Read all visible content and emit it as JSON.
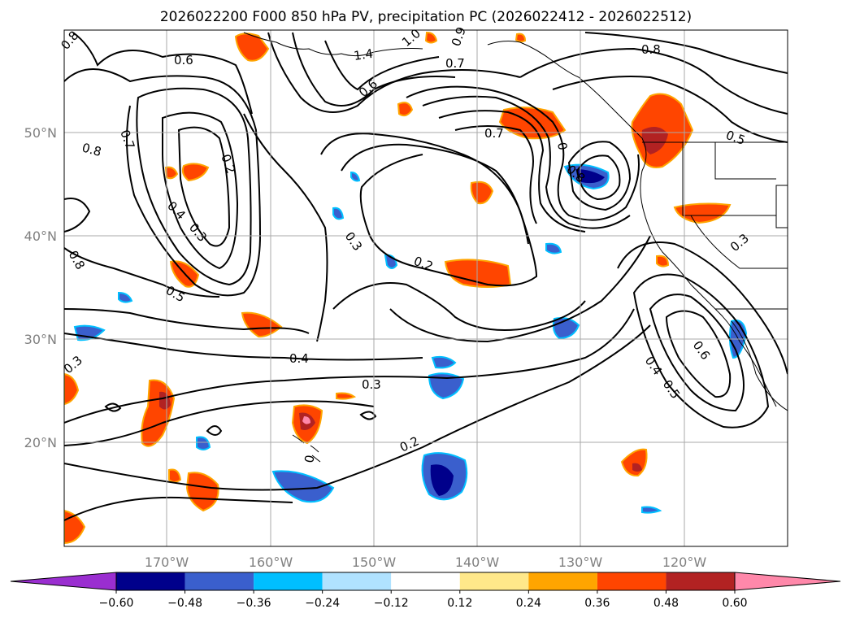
{
  "title": "2026022200 F000 850 hPa PV, precipitation PC (2026022412 - 2026022512)",
  "lat_labels": [
    "50°N",
    "40°N",
    "30°N",
    "20°N"
  ],
  "lon_labels": [
    "170°W",
    "160°W",
    "150°W",
    "140°W",
    "130°W",
    "120°W"
  ],
  "colorbar": {
    "colors": [
      "#9a2ed0",
      "#00008b",
      "#3a5fcd",
      "#00bfff",
      "#b0e2ff",
      "#ffffff",
      "#ffe88a",
      "#ffa500",
      "#ff4500",
      "#b22222",
      "#ff88aa"
    ],
    "tick_labels": [
      "−0.60",
      "−0.48",
      "−0.36",
      "−0.24",
      "−0.12",
      "0.12",
      "0.24",
      "0.36",
      "0.48",
      "0.60"
    ]
  },
  "contour_labels": [
    {
      "id": "c-0.8-a",
      "text": "0.8"
    },
    {
      "id": "c-0.6-a",
      "text": "0.6"
    },
    {
      "id": "c-1.4-a",
      "text": "1.4"
    },
    {
      "id": "c-1.0-a",
      "text": "1.0"
    },
    {
      "id": "c-0.9-a",
      "text": "0.9"
    },
    {
      "id": "c-0.7-a",
      "text": "0.7"
    },
    {
      "id": "c-0.8-b",
      "text": "0.8"
    },
    {
      "id": "c-0.6-b",
      "text": "0.6"
    },
    {
      "id": "c-0.7-b",
      "text": "0.7"
    },
    {
      "id": "c-0.8-c",
      "text": "0.8"
    },
    {
      "id": "c-0.2-a",
      "text": "0.2"
    },
    {
      "id": "c-0.7-c",
      "text": "0.7"
    },
    {
      "id": "c-0.5-a",
      "text": "0.5"
    },
    {
      "id": "c-0.4-a",
      "text": "0.4"
    },
    {
      "id": "c-0.3-a",
      "text": "0.3"
    },
    {
      "id": "c-0.8-d",
      "text": "0.8"
    },
    {
      "id": "c-0.5-b",
      "text": "0.5"
    },
    {
      "id": "c-0.3-b",
      "text": "0.3"
    },
    {
      "id": "c-0.2-b",
      "text": "0.2"
    },
    {
      "id": "c-0.3-c",
      "text": "0.3"
    },
    {
      "id": "c-0.4-b",
      "text": "0.4"
    },
    {
      "id": "c-0.3-d",
      "text": "0.3"
    },
    {
      "id": "c-0.2-c",
      "text": "0.2"
    },
    {
      "id": "c-0.6-c",
      "text": "0.6"
    },
    {
      "id": "c-0.4-c",
      "text": "0.4"
    },
    {
      "id": "c-0.5-c",
      "text": "0.5"
    },
    {
      "id": "c-0.3-e",
      "text": "0.3"
    },
    {
      "id": "c-0-a",
      "text": "0"
    },
    {
      "id": "c-0.8-e",
      "text": "0.8"
    },
    {
      "id": "c-0-b",
      "text": "0"
    }
  ]
}
